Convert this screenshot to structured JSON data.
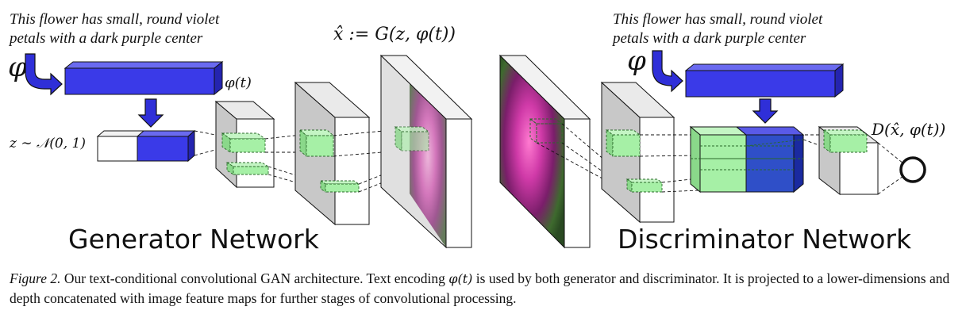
{
  "generator": {
    "input_text_line1": "This flower has small, round violet",
    "input_text_line2": "petals with a dark purple center",
    "phi_symbol": "φ",
    "phi_t_label": "φ(t)",
    "noise_label": "z ∼ 𝒩(0, 1)",
    "output_label": "x̂ := G(z, φ(t))",
    "network_title": "Generator Network"
  },
  "discriminator": {
    "input_text_line1": "This flower has small, round violet",
    "input_text_line2": "petals with a dark purple center",
    "phi_symbol": "φ",
    "output_label": "D(x̂, φ(t))",
    "network_title": "Discriminator Network"
  },
  "colors": {
    "text_encoding_blue": "#3a3ae8",
    "feature_green": "#a6f0a6",
    "volume_gray": "#c8c8c8"
  },
  "caption": {
    "label": "Figure 2.",
    "text_before": " Our text-conditional convolutional GAN architecture.  Text encoding ",
    "math": "φ(t)",
    "text_after": " is used by both generator and discriminator.  It is projected to a lower-dimensions and depth concatenated with image feature maps for further stages of convolutional processing."
  }
}
